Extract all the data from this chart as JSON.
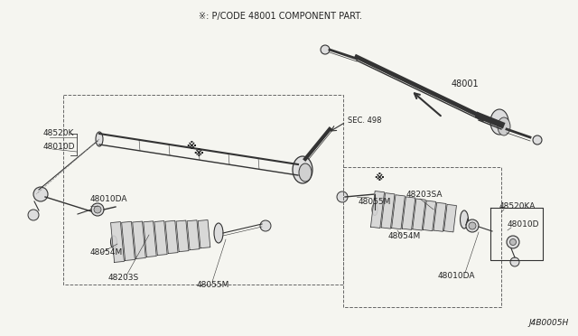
{
  "background_color": "#f5f5f0",
  "header_text": "※: P/CODE 48001 COMPONENT PART.",
  "footer_text": "J4B0005H",
  "sec_label": "SEC. 498",
  "lc": "#333333",
  "tc": "#222222"
}
